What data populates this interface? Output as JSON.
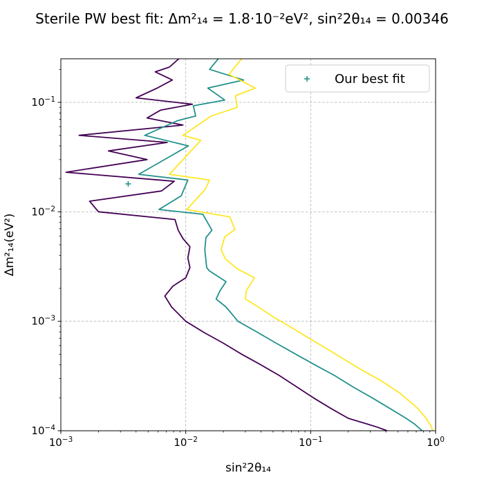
{
  "chart_data": {
    "type": "line",
    "title": "Sterile PW best fit: Δm²₁₄ = 1.8·10⁻²eV², sin²2θ₁₄ = 0.00346",
    "xlabel": "sin²2θ₁₄",
    "ylabel": "Δm²₁₄(eV²)",
    "xscale": "log",
    "yscale": "log",
    "xlim": [
      0.001,
      1.0
    ],
    "ylim": [
      0.0001,
      0.25
    ],
    "x_ticks": [
      0.001,
      0.01,
      0.1,
      1.0
    ],
    "x_tick_labels": [
      {
        "base": "10",
        "exp": "−3"
      },
      {
        "base": "10",
        "exp": "−2"
      },
      {
        "base": "10",
        "exp": "−1"
      },
      {
        "base": "10",
        "exp": "0"
      }
    ],
    "y_ticks": [
      0.0001,
      0.001,
      0.01,
      0.1
    ],
    "y_tick_labels": [
      {
        "base": "10",
        "exp": "−4"
      },
      {
        "base": "10",
        "exp": "−3"
      },
      {
        "base": "10",
        "exp": "−2"
      },
      {
        "base": "10",
        "exp": "−1"
      }
    ],
    "grid": true,
    "legend": {
      "position": "top-right",
      "entries": [
        "Our best fit"
      ]
    },
    "best_fit": {
      "x": 0.00346,
      "y": 0.018,
      "color": "#21918c",
      "marker": "+"
    },
    "series": [
      {
        "color": "#440154",
        "points": [
          [
            0.0088,
            0.25
          ],
          [
            0.0074,
            0.21
          ],
          [
            0.0057,
            0.19
          ],
          [
            0.0078,
            0.16
          ],
          [
            0.0059,
            0.135
          ],
          [
            0.004,
            0.11
          ],
          [
            0.0113,
            0.096
          ],
          [
            0.0063,
            0.085
          ],
          [
            0.0049,
            0.072
          ],
          [
            0.0095,
            0.062
          ],
          [
            0.0014,
            0.05
          ],
          [
            0.0071,
            0.043
          ],
          [
            0.0024,
            0.036
          ],
          [
            0.0049,
            0.03
          ],
          [
            0.0011,
            0.023
          ],
          [
            0.0081,
            0.019
          ],
          [
            0.0064,
            0.0155
          ],
          [
            0.0017,
            0.0125
          ],
          [
            0.002,
            0.01
          ],
          [
            0.0082,
            0.0085
          ],
          [
            0.0087,
            0.0068
          ],
          [
            0.0095,
            0.0057
          ],
          [
            0.0108,
            0.0048
          ],
          [
            0.0104,
            0.0038
          ],
          [
            0.0108,
            0.0031
          ],
          [
            0.01,
            0.0025
          ],
          [
            0.0079,
            0.0021
          ],
          [
            0.0068,
            0.0017
          ],
          [
            0.0077,
            0.00135
          ],
          [
            0.01,
            0.001
          ],
          [
            0.014,
            0.00079
          ],
          [
            0.02,
            0.00063
          ],
          [
            0.028,
            0.0005
          ],
          [
            0.04,
            0.0004
          ],
          [
            0.056,
            0.00032
          ],
          [
            0.078,
            0.00025
          ],
          [
            0.105,
            0.0002
          ],
          [
            0.145,
            0.00016
          ],
          [
            0.2,
            0.00013
          ],
          [
            0.285,
            0.000115
          ],
          [
            0.34,
            0.000108
          ],
          [
            0.41,
            0.0001
          ]
        ]
      },
      {
        "color": "#21918c",
        "points": [
          [
            0.0182,
            0.25
          ],
          [
            0.0155,
            0.2
          ],
          [
            0.029,
            0.16
          ],
          [
            0.015,
            0.135
          ],
          [
            0.0205,
            0.105
          ],
          [
            0.0115,
            0.093
          ],
          [
            0.012,
            0.075
          ],
          [
            0.0086,
            0.068
          ],
          [
            0.0047,
            0.05
          ],
          [
            0.0105,
            0.04
          ],
          [
            0.0042,
            0.022
          ],
          [
            0.0104,
            0.0195
          ],
          [
            0.0092,
            0.014
          ],
          [
            0.0061,
            0.0105
          ],
          [
            0.0137,
            0.0095
          ],
          [
            0.0162,
            0.0068
          ],
          [
            0.0145,
            0.0058
          ],
          [
            0.0142,
            0.0045
          ],
          [
            0.0147,
            0.0031
          ],
          [
            0.0154,
            0.0029
          ],
          [
            0.021,
            0.0023
          ],
          [
            0.0188,
            0.0019
          ],
          [
            0.0175,
            0.0016
          ],
          [
            0.021,
            0.00135
          ],
          [
            0.0262,
            0.001
          ],
          [
            0.037,
            0.0008
          ],
          [
            0.053,
            0.00063
          ],
          [
            0.076,
            0.0005
          ],
          [
            0.108,
            0.0004
          ],
          [
            0.155,
            0.00032
          ],
          [
            0.22,
            0.00025
          ],
          [
            0.31,
            0.0002
          ],
          [
            0.43,
            0.00016
          ],
          [
            0.58,
            0.00013
          ],
          [
            0.68,
            0.000115
          ],
          [
            0.78,
            0.0001
          ]
        ]
      },
      {
        "color": "#fde725",
        "points": [
          [
            0.028,
            0.25
          ],
          [
            0.0222,
            0.18
          ],
          [
            0.036,
            0.135
          ],
          [
            0.025,
            0.115
          ],
          [
            0.0258,
            0.09
          ],
          [
            0.016,
            0.075
          ],
          [
            0.0095,
            0.05
          ],
          [
            0.0132,
            0.045
          ],
          [
            0.0074,
            0.022
          ],
          [
            0.0155,
            0.0195
          ],
          [
            0.0143,
            0.016
          ],
          [
            0.0102,
            0.0105
          ],
          [
            0.0225,
            0.009
          ],
          [
            0.0248,
            0.0069
          ],
          [
            0.0205,
            0.0059
          ],
          [
            0.0192,
            0.0045
          ],
          [
            0.0208,
            0.0037
          ],
          [
            0.026,
            0.003
          ],
          [
            0.0355,
            0.0025
          ],
          [
            0.0305,
            0.0019
          ],
          [
            0.03,
            0.0016
          ],
          [
            0.038,
            0.00135
          ],
          [
            0.05,
            0.0011
          ],
          [
            0.07,
            0.00088
          ],
          [
            0.097,
            0.0007
          ],
          [
            0.135,
            0.00056
          ],
          [
            0.185,
            0.00045
          ],
          [
            0.255,
            0.00036
          ],
          [
            0.36,
            0.00029
          ],
          [
            0.52,
            0.00022
          ],
          [
            0.72,
            0.00016
          ],
          [
            0.84,
            0.00013
          ],
          [
            0.92,
            0.00011
          ],
          [
            0.95,
            0.0001
          ]
        ]
      }
    ]
  }
}
